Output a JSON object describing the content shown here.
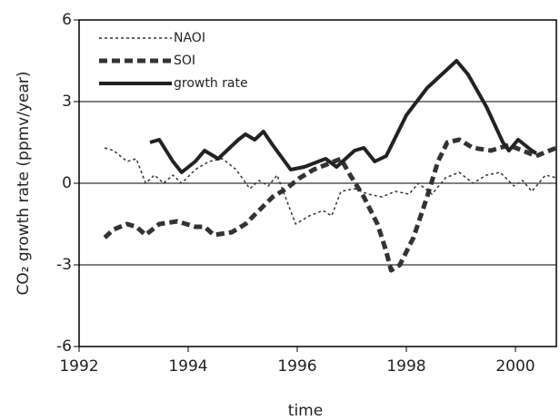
{
  "chart_data": {
    "type": "line",
    "xlabel": "time",
    "ylabel": "CO₂ growth rate (ppmv/year)",
    "xlim": [
      1992,
      2000.75
    ],
    "xticks": [
      1992,
      1994,
      1996,
      1998,
      2000
    ],
    "ylim": [
      -6,
      6
    ],
    "yticks": [
      -6,
      -3,
      0,
      3,
      6
    ],
    "grid": true,
    "legend": "upper left",
    "series": [
      {
        "name": "NAOI",
        "color": "#333333",
        "linestyle": "dotted",
        "x": [
          1992.47,
          1992.63,
          1992.88,
          1993.05,
          1993.22,
          1993.38,
          1993.55,
          1993.72,
          1993.88,
          1994.13,
          1994.38,
          1994.63,
          1994.88,
          1995.13,
          1995.3,
          1995.47,
          1995.63,
          1995.8,
          1995.97,
          1996.22,
          1996.47,
          1996.63,
          1996.8,
          1997.05,
          1997.3,
          1997.55,
          1997.8,
          1998.05,
          1998.22,
          1998.47,
          1998.72,
          1998.97,
          1999.22,
          1999.47,
          1999.72,
          1999.97,
          2000.13,
          2000.3,
          2000.55,
          2000.75
        ],
        "values": [
          1.3,
          1.2,
          0.8,
          0.9,
          0.0,
          0.3,
          0.0,
          0.3,
          0.0,
          0.5,
          0.8,
          0.9,
          0.5,
          -0.2,
          0.1,
          -0.1,
          0.3,
          -0.6,
          -1.5,
          -1.2,
          -1.0,
          -1.2,
          -0.3,
          -0.2,
          -0.4,
          -0.5,
          -0.3,
          -0.4,
          0.0,
          -0.4,
          0.2,
          0.4,
          0.0,
          0.3,
          0.4,
          -0.1,
          0.1,
          -0.3,
          0.3,
          0.2
        ]
      },
      {
        "name": "SOI",
        "color": "#333333",
        "linestyle": "dashed",
        "x": [
          1992.47,
          1992.63,
          1992.88,
          1993.05,
          1993.22,
          1993.47,
          1993.8,
          1994.13,
          1994.3,
          1994.47,
          1994.8,
          1995.05,
          1995.3,
          1995.55,
          1995.8,
          1996.05,
          1996.3,
          1996.55,
          1996.8,
          1996.97,
          1997.22,
          1997.47,
          1997.63,
          1997.72,
          1997.88,
          1998.13,
          1998.38,
          1998.58,
          1998.75,
          1998.97,
          1999.22,
          1999.55,
          1999.88,
          2000.13,
          2000.38,
          2000.75
        ],
        "values": [
          -2.0,
          -1.7,
          -1.5,
          -1.6,
          -1.9,
          -1.5,
          -1.4,
          -1.6,
          -1.6,
          -1.9,
          -1.8,
          -1.5,
          -1.0,
          -0.5,
          -0.2,
          0.2,
          0.5,
          0.7,
          0.9,
          0.3,
          -0.5,
          -1.5,
          -2.5,
          -3.2,
          -3.0,
          -2.0,
          -0.5,
          0.8,
          1.5,
          1.6,
          1.3,
          1.2,
          1.4,
          1.2,
          1.0,
          1.3
        ]
      },
      {
        "name": "growth rate",
        "color": "#222222",
        "linestyle": "solid",
        "x": [
          1993.3,
          1993.47,
          1993.72,
          1993.88,
          1994.13,
          1994.3,
          1994.55,
          1994.92,
          1995.05,
          1995.22,
          1995.38,
          1995.55,
          1995.88,
          1996.13,
          1996.52,
          1996.72,
          1997.05,
          1997.22,
          1997.42,
          1997.63,
          1998.0,
          1998.38,
          1998.92,
          1999.13,
          1999.47,
          1999.77,
          1999.88,
          2000.05,
          2000.3,
          2000.38
        ],
        "values": [
          1.5,
          1.6,
          0.8,
          0.4,
          0.8,
          1.2,
          0.9,
          1.6,
          1.8,
          1.6,
          1.9,
          1.4,
          0.5,
          0.6,
          0.9,
          0.6,
          1.2,
          1.3,
          0.8,
          1.0,
          2.5,
          3.5,
          4.5,
          4.0,
          2.8,
          1.5,
          1.2,
          1.6,
          1.2,
          1.1
        ]
      }
    ]
  }
}
